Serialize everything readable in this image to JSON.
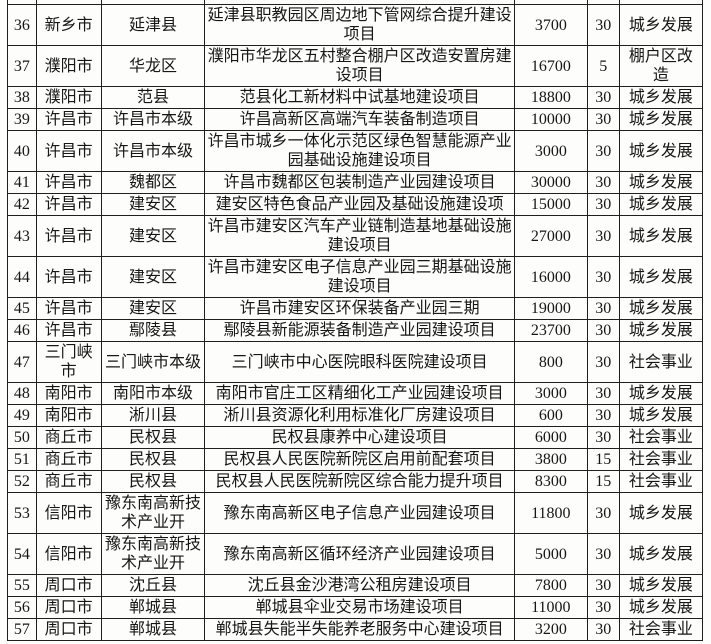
{
  "page": {
    "kind": "scanned-table-document",
    "background_color": "#fdfdfc",
    "border_color": "#1f1f1f",
    "text_color": "#161616"
  },
  "table": {
    "visible_header": false,
    "column_roles": [
      "row-number",
      "city",
      "county-district",
      "project-name",
      "amount",
      "ratio",
      "category"
    ],
    "rows": [
      [
        "36",
        "新乡市",
        "延津县",
        "延津县职教园区周边地下管网综合提升建设项目",
        "3700",
        "30",
        "城乡发展"
      ],
      [
        "37",
        "濮阳市",
        "华龙区",
        "濮阳市华龙区五村整合棚户区改造安置房建设项目",
        "16700",
        "5",
        "棚户区改造"
      ],
      [
        "38",
        "濮阳市",
        "范县",
        "范县化工新材料中试基地建设项目",
        "18800",
        "30",
        "城乡发展"
      ],
      [
        "39",
        "许昌市",
        "许昌市本级",
        "许昌高新区高端汽车装备制造项目",
        "10000",
        "30",
        "城乡发展"
      ],
      [
        "40",
        "许昌市",
        "许昌市本级",
        "许昌市城乡一体化示范区绿色智慧能源产业园基础设施建设项目",
        "3000",
        "30",
        "城乡发展"
      ],
      [
        "41",
        "许昌市",
        "魏都区",
        "许昌市魏都区包装制造产业园建设项目",
        "30000",
        "30",
        "城乡发展"
      ],
      [
        "42",
        "许昌市",
        "建安区",
        "建安区特色食品产业园及基础设施建设项",
        "15000",
        "30",
        "城乡发展"
      ],
      [
        "43",
        "许昌市",
        "建安区",
        "许昌市建安区汽车产业链制造基地基础设施建设项目",
        "27000",
        "30",
        "城乡发展"
      ],
      [
        "44",
        "许昌市",
        "建安区",
        "许昌市建安区电子信息产业园三期基础设施建设项目",
        "16000",
        "30",
        "城乡发展"
      ],
      [
        "45",
        "许昌市",
        "建安区",
        "许昌市建安区环保装备产业园三期",
        "19000",
        "30",
        "城乡发展"
      ],
      [
        "46",
        "许昌市",
        "鄢陵县",
        "鄢陵县新能源装备制造产业园建设项目",
        "23700",
        "30",
        "城乡发展"
      ],
      [
        "47",
        "三门峡市",
        "三门峡市本级",
        "三门峡市中心医院眼科医院建设项目",
        "800",
        "30",
        "社会事业"
      ],
      [
        "48",
        "南阳市",
        "南阳市本级",
        "南阳市官庄工区精细化工产业园建设项目",
        "3000",
        "30",
        "城乡发展"
      ],
      [
        "49",
        "南阳市",
        "淅川县",
        "淅川县资源化利用标准化厂房建设项目",
        "600",
        "30",
        "城乡发展"
      ],
      [
        "50",
        "商丘市",
        "民权县",
        "民权县康养中心建设项目",
        "6000",
        "30",
        "社会事业"
      ],
      [
        "51",
        "商丘市",
        "民权县",
        "民权县人民医院新院区启用前配套项目",
        "3800",
        "15",
        "社会事业"
      ],
      [
        "52",
        "商丘市",
        "民权县",
        "民权县人民医院新院区综合能力提升项目",
        "8300",
        "15",
        "社会事业"
      ],
      [
        "53",
        "信阳市",
        "豫东南高新技术产业开",
        "豫东南高新区电子信息产业园建设项目",
        "11800",
        "30",
        "城乡发展"
      ],
      [
        "54",
        "信阳市",
        "豫东南高新技术产业开",
        "豫东南高新区循环经济产业园建设项目",
        "5000",
        "30",
        "城乡发展"
      ],
      [
        "55",
        "周口市",
        "沈丘县",
        "沈丘县金沙港湾公租房建设项目",
        "7800",
        "30",
        "城乡发展"
      ],
      [
        "56",
        "周口市",
        "郸城县",
        "郸城县伞业交易市场建设项目",
        "11000",
        "30",
        "城乡发展"
      ],
      [
        "57",
        "周口市",
        "郸城县",
        "郸城县失能半失能养老服务中心建设项目",
        "3200",
        "30",
        "社会事业"
      ]
    ]
  }
}
